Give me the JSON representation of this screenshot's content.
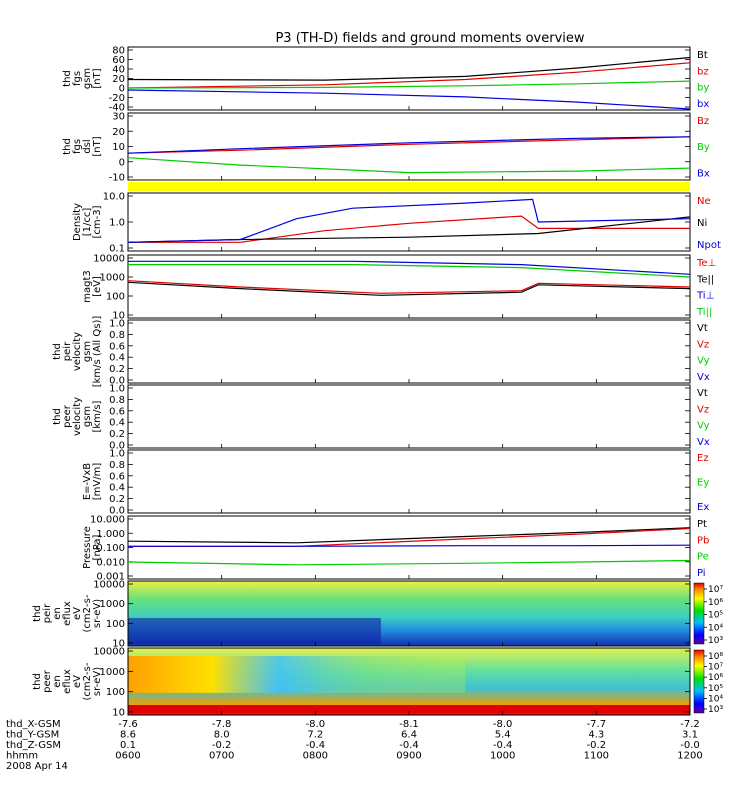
{
  "chart_data": {
    "type": "line",
    "title": "P3 (TH-D) fields and ground moments overview",
    "colors": {
      "black": "#000000",
      "red": "#e00000",
      "green": "#00cc00",
      "blue": "#0000e0",
      "yellow": "#ffff00"
    },
    "panels": [
      {
        "id": "fgs",
        "ylabel_lines": [
          "thd",
          "fgs",
          "gsm",
          "[nT]"
        ],
        "yticks": [
          "80",
          "60",
          "40",
          "20",
          "0",
          "-20",
          "-40"
        ],
        "yrange": [
          -40,
          80
        ],
        "legend": [
          {
            "label": "Bt",
            "color": "black"
          },
          {
            "label": "bz",
            "color": "red"
          },
          {
            "label": "by",
            "color": "green"
          },
          {
            "label": "bx",
            "color": "blue"
          }
        ],
        "series": [
          {
            "name": "Bt",
            "color": "black",
            "x": [
              0,
              0.35,
              0.6,
              0.8,
              1.0
            ],
            "y": [
              18,
              17,
              24,
              40,
              60
            ]
          },
          {
            "name": "bz",
            "color": "red",
            "x": [
              0,
              0.35,
              0.6,
              0.8,
              1.0
            ],
            "y": [
              2,
              8,
              18,
              32,
              50
            ]
          },
          {
            "name": "by",
            "color": "green",
            "x": [
              0,
              0.35,
              0.6,
              0.8,
              1.0
            ],
            "y": [
              2,
              3,
              6,
              10,
              15
            ]
          },
          {
            "name": "bx",
            "color": "blue",
            "x": [
              0,
              0.35,
              0.6,
              0.8,
              1.0
            ],
            "y": [
              -2,
              -8,
              -15,
              -25,
              -38
            ]
          }
        ]
      },
      {
        "id": "fgs-dsl",
        "ylabel_lines": [
          "thd",
          "fgs",
          "dsl",
          "[nT]"
        ],
        "yticks": [
          "30",
          "20",
          "10",
          "0",
          "-10"
        ],
        "yrange": [
          -15,
          30
        ],
        "legend": [
          {
            "label": "Bz",
            "color": "red"
          },
          {
            "label": "By",
            "color": "green"
          },
          {
            "label": "Bx",
            "color": "blue"
          }
        ],
        "series": [
          {
            "name": "Bz",
            "color": "red",
            "x": [
              0,
              0.2,
              0.5,
              0.8,
              1.0
            ],
            "y": [
              3,
              5,
              9,
              12,
              14
            ]
          },
          {
            "name": "By",
            "color": "green",
            "x": [
              0,
              0.2,
              0.5,
              0.8,
              1.0
            ],
            "y": [
              0,
              -5,
              -10,
              -9,
              -7
            ]
          },
          {
            "name": "Bx",
            "color": "blue",
            "x": [
              0,
              0.2,
              0.5,
              0.8,
              1.0
            ],
            "y": [
              3,
              6,
              10,
              13,
              14
            ]
          }
        ]
      },
      {
        "id": "density",
        "ylabel_lines": [
          "Density",
          "[1/cc]",
          "[cm-3]"
        ],
        "yticks": [
          "10.0",
          "1.0",
          "0.1"
        ],
        "yrange": [
          0.1,
          10
        ],
        "log": true,
        "legend": [
          {
            "label": "Ne",
            "color": "red"
          },
          {
            "label": "Ni",
            "color": "black"
          },
          {
            "label": "Npot",
            "color": "blue"
          }
        ],
        "series": [
          {
            "name": "Ne",
            "color": "red",
            "x": [
              0,
              0.2,
              0.35,
              0.5,
              0.7,
              0.73,
              1.0
            ],
            "y": [
              0.2,
              0.2,
              0.5,
              0.9,
              1.6,
              0.6,
              0.6
            ]
          },
          {
            "name": "Ni",
            "color": "black",
            "x": [
              0,
              0.2,
              0.5,
              0.73,
              1.0
            ],
            "y": [
              0.2,
              0.25,
              0.3,
              0.4,
              1.5
            ]
          },
          {
            "name": "Npot",
            "color": "blue",
            "x": [
              0,
              0.2,
              0.3,
              0.4,
              0.6,
              0.72,
              0.73,
              1.0
            ],
            "y": [
              0.2,
              0.25,
              1.3,
              3.0,
              4.5,
              6.0,
              1.0,
              1.3
            ]
          }
        ]
      },
      {
        "id": "temperature",
        "ylabel_lines": [
          "magt3",
          "[eV]"
        ],
        "yticks": [
          "10000",
          "1000",
          "100",
          "10"
        ],
        "yrange": [
          10,
          10000
        ],
        "log": true,
        "legend": [
          {
            "label": "Te⊥",
            "color": "red"
          },
          {
            "label": "Te||",
            "color": "black"
          },
          {
            "label": "Ti⊥",
            "color": "blue"
          },
          {
            "label": "Ti||",
            "color": "green"
          }
        ],
        "series": [
          {
            "name": "Te⊥",
            "color": "red",
            "x": [
              0,
              0.2,
              0.45,
              0.7,
              0.73,
              1.0
            ],
            "y": [
              600,
              300,
              150,
              200,
              450,
              300
            ]
          },
          {
            "name": "Te||",
            "color": "black",
            "x": [
              0,
              0.2,
              0.45,
              0.7,
              0.73,
              1.0
            ],
            "y": [
              500,
              250,
              120,
              170,
              380,
              250
            ]
          },
          {
            "name": "Ti⊥",
            "color": "blue",
            "x": [
              0,
              0.4,
              0.7,
              1.0
            ],
            "y": [
              5000,
              5000,
              3500,
              1200
            ]
          },
          {
            "name": "Ti||",
            "color": "green",
            "x": [
              0,
              0.4,
              0.7,
              1.0
            ],
            "y": [
              3500,
              3500,
              2500,
              900
            ]
          }
        ]
      },
      {
        "id": "peir-velocity",
        "ylabel_lines": [
          "thd",
          "peir",
          "velocity",
          "gsm",
          "[km/s (All Qs)]"
        ],
        "yticks": [
          "1.0",
          "0.8",
          "0.6",
          "0.4",
          "0.2",
          "0.0"
        ],
        "yrange": [
          0,
          1
        ],
        "legend": [
          {
            "label": "Vt",
            "color": "black"
          },
          {
            "label": "Vz",
            "color": "red"
          },
          {
            "label": "Vy",
            "color": "green"
          },
          {
            "label": "Vx",
            "color": "blue"
          }
        ],
        "series": []
      },
      {
        "id": "peer-velocity",
        "ylabel_lines": [
          "thd",
          "peer",
          "velocity",
          "gsm",
          "[km/s]"
        ],
        "yticks": [
          "1.0",
          "0.8",
          "0.6",
          "0.4",
          "0.2",
          "0.0"
        ],
        "yrange": [
          0,
          1
        ],
        "legend": [
          {
            "label": "Vt",
            "color": "black"
          },
          {
            "label": "Vz",
            "color": "red"
          },
          {
            "label": "Vy",
            "color": "green"
          },
          {
            "label": "Vx",
            "color": "blue"
          }
        ],
        "series": []
      },
      {
        "id": "efield",
        "ylabel_lines": [
          "E=-VxB",
          "[mV/m]"
        ],
        "yticks": [
          "1.0",
          "0.8",
          "0.6",
          "0.4",
          "0.2",
          "0.0"
        ],
        "yrange": [
          0,
          1
        ],
        "legend": [
          {
            "label": "Ez",
            "color": "red"
          },
          {
            "label": "Ey",
            "color": "green"
          },
          {
            "label": "Ex",
            "color": "blue"
          }
        ],
        "series": []
      },
      {
        "id": "pressure",
        "ylabel_lines": [
          "Pressure",
          "[nPa]"
        ],
        "yticks": [
          "10.000",
          "1.000",
          "0.100",
          "0.010",
          "0.001"
        ],
        "yrange": [
          0.001,
          10
        ],
        "log": true,
        "legend": [
          {
            "label": "Pt",
            "color": "black"
          },
          {
            "label": "Pb",
            "color": "red"
          },
          {
            "label": "Pe",
            "color": "green"
          },
          {
            "label": "Pi",
            "color": "blue"
          }
        ],
        "series": [
          {
            "name": "Pt",
            "color": "black",
            "x": [
              0,
              0.3,
              0.6,
              0.8,
              1.0
            ],
            "y": [
              0.25,
              0.2,
              0.5,
              0.9,
              1.8
            ]
          },
          {
            "name": "Pb",
            "color": "red",
            "x": [
              0,
              0.3,
              0.6,
              0.8,
              1.0
            ],
            "y": [
              0.12,
              0.12,
              0.35,
              0.7,
              1.6
            ]
          },
          {
            "name": "Pe",
            "color": "green",
            "x": [
              0,
              0.3,
              0.6,
              0.8,
              1.0
            ],
            "y": [
              0.012,
              0.008,
              0.01,
              0.012,
              0.015
            ]
          },
          {
            "name": "Pi",
            "color": "blue",
            "x": [
              0,
              0.3,
              0.6,
              0.8,
              1.0
            ],
            "y": [
              0.12,
              0.12,
              0.13,
              0.13,
              0.14
            ]
          }
        ]
      },
      {
        "id": "peir-spec",
        "type": "heatmap",
        "ylabel_lines": [
          "thd",
          "peir",
          "en",
          "eflux",
          "eV",
          "(cm2-s-",
          "sr-eV)"
        ],
        "yticks": [
          "10000",
          "1000",
          "100",
          "10"
        ],
        "colorbar_ticks": [
          "10⁷",
          "10⁶",
          "10⁵",
          "10⁴",
          "10³"
        ]
      },
      {
        "id": "peer-spec",
        "type": "heatmap",
        "ylabel_lines": [
          "thd",
          "peer",
          "en",
          "eflux",
          "eV",
          "(cm2-s-",
          "sr-eV)"
        ],
        "yticks": [
          "10000",
          "1000",
          "100",
          "10"
        ],
        "colorbar_ticks": [
          "10⁸",
          "10⁷",
          "10⁶",
          "10⁵",
          "10⁴",
          "10³"
        ]
      }
    ],
    "x_axis": {
      "rows": [
        {
          "label": "thd_X-GSM",
          "values": [
            "-7.6",
            "-7.8",
            "-8.0",
            "-8.1",
            "-8.0",
            "-7.7",
            "-7.2"
          ]
        },
        {
          "label": "thd_Y-GSM",
          "values": [
            "8.6",
            "8.0",
            "7.2",
            "6.4",
            "5.4",
            "4.3",
            "3.1"
          ]
        },
        {
          "label": "thd_Z-GSM",
          "values": [
            "0.1",
            "-0.2",
            "-0.4",
            "-0.4",
            "-0.4",
            "-0.2",
            "-0.0"
          ]
        },
        {
          "label": "hhmm",
          "values": [
            "0600",
            "0700",
            "0800",
            "0900",
            "1000",
            "1100",
            "1200"
          ]
        }
      ],
      "date": "2008 Apr 14"
    }
  }
}
